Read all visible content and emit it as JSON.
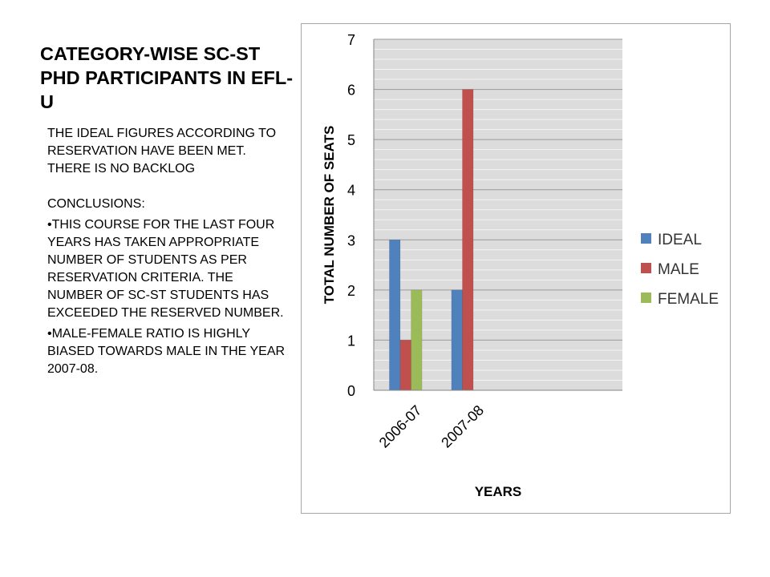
{
  "slide": {
    "title": "CATEGORY-WISE SC-ST PHD PARTICIPANTS IN EFL-U",
    "intro": "THE IDEAL FIGURES ACCORDING TO RESERVATION HAVE BEEN MET. THERE IS NO BACKLOG",
    "conclusions_heading": "CONCLUSIONS:",
    "bullets": [
      "•THIS COURSE FOR THE LAST FOUR YEARS HAS TAKEN APPROPRIATE NUMBER OF STUDENTS AS PER RESERVATION CRITERIA. THE NUMBER OF SC-ST STUDENTS HAS  EXCEEDED THE RESERVED NUMBER.",
      "•MALE-FEMALE RATIO IS HIGHLY BIASED TOWARDS MALE IN THE YEAR 2007-08."
    ]
  },
  "chart_data": {
    "type": "bar",
    "title": "",
    "xlabel": "YEARS",
    "ylabel": "TOTAL NUMBER OF SEATS",
    "categories": [
      "2006-07",
      "2007-08"
    ],
    "slots": 4,
    "series": [
      {
        "name": "IDEAL",
        "color": "#4f81bd",
        "values": [
          3,
          2
        ]
      },
      {
        "name": "MALE",
        "color": "#c0504d",
        "values": [
          1,
          6
        ]
      },
      {
        "name": "FEMALE",
        "color": "#9bbb59",
        "values": [
          2,
          null
        ]
      }
    ],
    "ylim": [
      0,
      7
    ],
    "yticks": [
      0,
      1,
      2,
      3,
      4,
      5,
      6,
      7
    ],
    "grid": true,
    "legend_position": "right"
  }
}
